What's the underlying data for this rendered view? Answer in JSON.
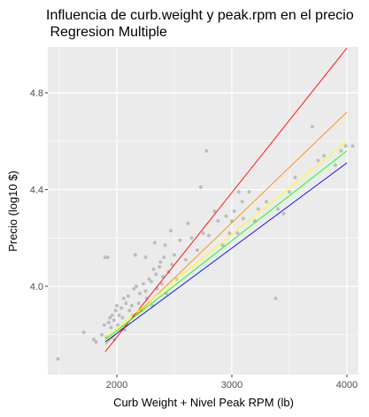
{
  "chart_data": {
    "type": "scatter",
    "title": "Influencia de curb.weight y peak.rpm en el precio",
    "subtitle": " Regresion Multiple",
    "xlabel": "Curb Weight + Nivel Peak RPM (lb)",
    "ylabel": "Precio (log10 $)",
    "xlim": [
      1400,
      4100
    ],
    "ylim": [
      3.635,
      4.99
    ],
    "x_ticks": [
      2000,
      3000,
      4000
    ],
    "x_tick_labels": [
      "2000",
      "3000",
      "4000"
    ],
    "y_ticks": [
      4.0,
      4.4,
      4.8
    ],
    "y_tick_labels": [
      "4.0",
      "4.4",
      "4.8"
    ],
    "grid": true,
    "panel_background": "#ebebeb",
    "grid_color": "#ffffff",
    "point_color": "#bdbdbd",
    "points": [
      [
        1488,
        3.7
      ],
      [
        1713,
        3.81
      ],
      [
        1800,
        3.78
      ],
      [
        1820,
        3.77
      ],
      [
        1870,
        3.8
      ],
      [
        1890,
        3.84
      ],
      [
        1900,
        4.12
      ],
      [
        1920,
        4.12
      ],
      [
        1910,
        3.79
      ],
      [
        1930,
        3.85
      ],
      [
        1940,
        3.87
      ],
      [
        1950,
        3.83
      ],
      [
        1960,
        3.88
      ],
      [
        1975,
        3.86
      ],
      [
        1990,
        3.9
      ],
      [
        2000,
        3.92
      ],
      [
        2010,
        3.84
      ],
      [
        2020,
        3.88
      ],
      [
        2040,
        3.91
      ],
      [
        2050,
        3.87
      ],
      [
        2060,
        3.95
      ],
      [
        2080,
        3.93
      ],
      [
        2100,
        3.96
      ],
      [
        2110,
        3.9
      ],
      [
        2130,
        3.92
      ],
      [
        2140,
        3.88
      ],
      [
        2150,
        3.99
      ],
      [
        2170,
        4.0
      ],
      [
        2190,
        3.93
      ],
      [
        2200,
        3.97
      ],
      [
        2210,
        3.9
      ],
      [
        2230,
        4.01
      ],
      [
        2250,
        3.98
      ],
      [
        2260,
        3.95
      ],
      [
        2280,
        4.03
      ],
      [
        2300,
        4.02
      ],
      [
        2310,
        3.92
      ],
      [
        2320,
        4.07
      ],
      [
        2340,
        4.05
      ],
      [
        2350,
        3.99
      ],
      [
        2370,
        4.08
      ],
      [
        2380,
        4.1
      ],
      [
        2390,
        4.01
      ],
      [
        2400,
        4.04
      ],
      [
        2410,
        4.12
      ],
      [
        2420,
        4.17
      ],
      [
        2430,
        3.97
      ],
      [
        2450,
        4.06
      ],
      [
        2480,
        4.09
      ],
      [
        2500,
        4.13
      ],
      [
        2520,
        4.03
      ],
      [
        2550,
        4.19
      ],
      [
        2600,
        4.11
      ],
      [
        2620,
        4.26
      ],
      [
        2650,
        4.2
      ],
      [
        2700,
        4.15
      ],
      [
        2730,
        4.41
      ],
      [
        2750,
        4.22
      ],
      [
        2780,
        4.56
      ],
      [
        2800,
        4.21
      ],
      [
        2850,
        4.31
      ],
      [
        2880,
        4.27
      ],
      [
        2920,
        4.17
      ],
      [
        2950,
        4.29
      ],
      [
        2980,
        4.22
      ],
      [
        3000,
        4.27
      ],
      [
        3020,
        4.31
      ],
      [
        3050,
        4.22
      ],
      [
        3060,
        4.39
      ],
      [
        3090,
        4.35
      ],
      [
        3100,
        4.28
      ],
      [
        3150,
        4.39
      ],
      [
        3200,
        4.27
      ],
      [
        3230,
        4.32
      ],
      [
        3300,
        4.35
      ],
      [
        3380,
        3.95
      ],
      [
        3400,
        4.32
      ],
      [
        3450,
        4.3
      ],
      [
        3500,
        4.39
      ],
      [
        3550,
        4.45
      ],
      [
        3700,
        4.66
      ],
      [
        3750,
        4.52
      ],
      [
        3800,
        4.54
      ],
      [
        3900,
        4.5
      ],
      [
        3950,
        4.56
      ],
      [
        3990,
        4.58
      ],
      [
        4050,
        4.58
      ],
      [
        2160,
        4.13
      ],
      [
        2330,
        4.18
      ],
      [
        2470,
        4.23
      ],
      [
        2250,
        4.12
      ],
      [
        2070,
        3.82
      ],
      [
        1980,
        3.78
      ]
    ],
    "series": [
      {
        "color": "#ff0000",
        "x": [
          1900,
          4000
        ],
        "y": [
          3.73,
          4.985
        ]
      },
      {
        "color": "#ff8c00",
        "x": [
          1900,
          4000
        ],
        "y": [
          3.76,
          4.72
        ]
      },
      {
        "color": "#ffff00",
        "x": [
          1900,
          4000
        ],
        "y": [
          3.79,
          4.6
        ]
      },
      {
        "color": "#00ff00",
        "x": [
          1900,
          4000
        ],
        "y": [
          3.78,
          4.56
        ]
      },
      {
        "color": "#0000ff",
        "x": [
          1900,
          4000
        ],
        "y": [
          3.77,
          4.51
        ]
      }
    ]
  }
}
